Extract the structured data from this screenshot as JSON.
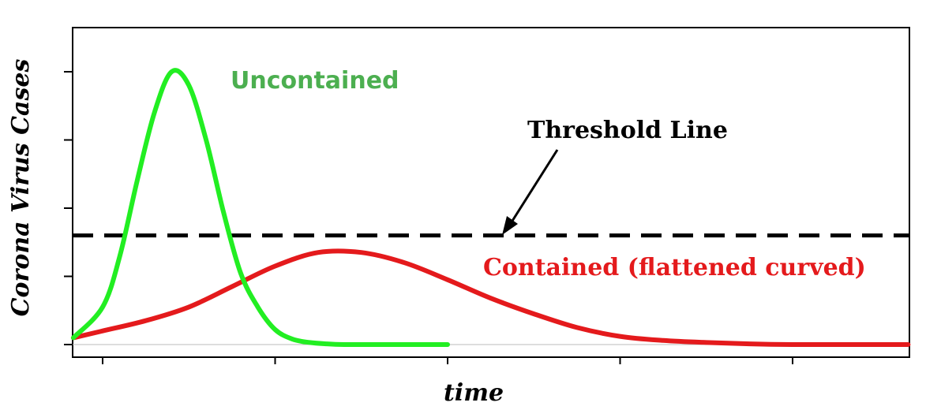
{
  "chart_data": {
    "type": "line",
    "title": "",
    "xlabel": "time",
    "ylabel": "Corona Virus Cases",
    "xlim": [
      -0.17,
      4.67
    ],
    "ylim": [
      0,
      4.2
    ],
    "x_ticks": [
      0,
      1,
      2,
      3,
      4
    ],
    "y_ticks": [
      0,
      1,
      2,
      3,
      4
    ],
    "tick_labels_shown": false,
    "grid": false,
    "legend": "none",
    "series": [
      {
        "name": "Uncontained",
        "color": "#22ee22",
        "label_color": "#4caf50",
        "x": [
          -0.17,
          0.0,
          0.1,
          0.2,
          0.3,
          0.4,
          0.5,
          0.6,
          0.7,
          0.8,
          0.9,
          1.0,
          1.1,
          1.2,
          1.3,
          1.4,
          1.5,
          1.6,
          1.7,
          1.8,
          1.9,
          2.0
        ],
        "y": [
          0.1,
          0.55,
          1.3,
          2.4,
          3.4,
          4.0,
          3.8,
          3.0,
          1.95,
          1.05,
          0.55,
          0.22,
          0.08,
          0.03,
          0.01,
          0.0,
          0.0,
          0.0,
          0.0,
          0.0,
          0.0,
          0.0
        ]
      },
      {
        "name": "Contained (flattened curved)",
        "color": "#e41a1c",
        "label_color": "#e41a1c",
        "x": [
          -0.17,
          0.0,
          0.25,
          0.5,
          0.75,
          1.0,
          1.25,
          1.5,
          1.75,
          2.0,
          2.25,
          2.5,
          2.75,
          3.0,
          3.25,
          3.5,
          3.75,
          4.0,
          4.25,
          4.5,
          4.67
        ],
        "y": [
          0.1,
          0.2,
          0.35,
          0.55,
          0.85,
          1.15,
          1.35,
          1.35,
          1.2,
          0.95,
          0.68,
          0.45,
          0.25,
          0.12,
          0.06,
          0.03,
          0.01,
          0.0,
          0.0,
          0.0,
          0.0
        ]
      }
    ],
    "threshold": {
      "label": "Threshold Line",
      "y": 1.6,
      "style": "dashed",
      "color": "#000000"
    }
  }
}
